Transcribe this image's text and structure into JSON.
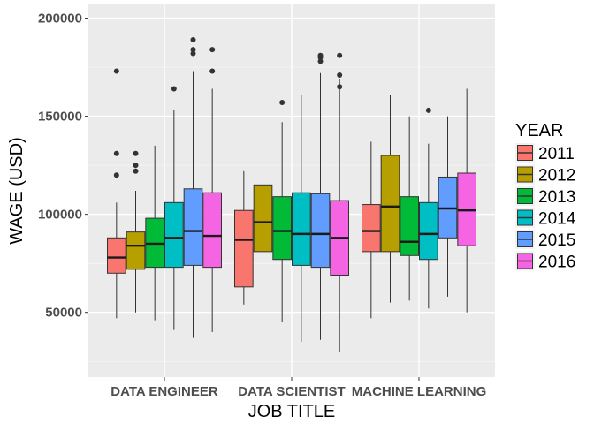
{
  "chart_data": {
    "type": "boxplot",
    "title": "",
    "xlabel": "JOB TITLE",
    "ylabel": "WAGE (USD)",
    "ylim": [
      17000,
      207000
    ],
    "yticks": [
      50000,
      100000,
      150000,
      200000
    ],
    "y_tick_labels": [
      "50000",
      "100000",
      "150000",
      "200000"
    ],
    "grid": true,
    "legend": {
      "title": "YEAR",
      "placement": "right"
    },
    "categories": [
      "DATA ENGINEER",
      "DATA SCIENTIST",
      "MACHINE LEARNING"
    ],
    "series": [
      {
        "name": "2011",
        "color": "#F8766D",
        "boxes": [
          {
            "lower": 47000,
            "q1": 70000,
            "median": 78000,
            "q3": 88000,
            "upper": 106000,
            "outliers": [
              120000,
              131000,
              173000
            ]
          },
          {
            "lower": 54000,
            "q1": 63000,
            "median": 87000,
            "q3": 102000,
            "upper": 122000,
            "outliers": []
          },
          {
            "lower": 47000,
            "q1": 81000,
            "median": 91500,
            "q3": 105000,
            "upper": 137000,
            "outliers": []
          }
        ]
      },
      {
        "name": "2012",
        "color": "#B79F00",
        "boxes": [
          {
            "lower": 50000,
            "q1": 72000,
            "median": 84000,
            "q3": 91000,
            "upper": 112000,
            "outliers": [
              122000,
              125000,
              131000
            ]
          },
          {
            "lower": 46000,
            "q1": 81000,
            "median": 96000,
            "q3": 115000,
            "upper": 157000,
            "outliers": []
          },
          {
            "lower": 55000,
            "q1": 81000,
            "median": 104000,
            "q3": 130000,
            "upper": 161000,
            "outliers": []
          }
        ]
      },
      {
        "name": "2013",
        "color": "#00BA38",
        "boxes": [
          {
            "lower": 46000,
            "q1": 73000,
            "median": 85000,
            "q3": 98000,
            "upper": 135000,
            "outliers": []
          },
          {
            "lower": 45000,
            "q1": 77000,
            "median": 91500,
            "q3": 109000,
            "upper": 147000,
            "outliers": [
              157000
            ]
          },
          {
            "lower": 56000,
            "q1": 79000,
            "median": 86000,
            "q3": 109000,
            "upper": 150000,
            "outliers": []
          }
        ]
      },
      {
        "name": "2014",
        "color": "#00BFC4",
        "boxes": [
          {
            "lower": 41000,
            "q1": 73000,
            "median": 88000,
            "q3": 106000,
            "upper": 153000,
            "outliers": [
              164000
            ]
          },
          {
            "lower": 35000,
            "q1": 74000,
            "median": 90000,
            "q3": 111000,
            "upper": 161000,
            "outliers": []
          },
          {
            "lower": 52000,
            "q1": 77000,
            "median": 90000,
            "q3": 106000,
            "upper": 136000,
            "outliers": [
              153000
            ]
          }
        ]
      },
      {
        "name": "2015",
        "color": "#619CFF",
        "boxes": [
          {
            "lower": 37000,
            "q1": 74000,
            "median": 91500,
            "q3": 113000,
            "upper": 173000,
            "outliers": [
              182000,
              184000,
              189000
            ]
          },
          {
            "lower": 36000,
            "q1": 73000,
            "median": 90000,
            "q3": 110500,
            "upper": 172000,
            "outliers": [
              178000,
              180000,
              181000
            ]
          },
          {
            "lower": 58000,
            "q1": 88000,
            "median": 103000,
            "q3": 119000,
            "upper": 150000,
            "outliers": []
          }
        ]
      },
      {
        "name": "2016",
        "color": "#F564E3",
        "boxes": [
          {
            "lower": 40000,
            "q1": 73000,
            "median": 89000,
            "q3": 111000,
            "upper": 164000,
            "outliers": [
              173000,
              184000
            ]
          },
          {
            "lower": 30000,
            "q1": 69000,
            "median": 88000,
            "q3": 107000,
            "upper": 169000,
            "outliers": [
              165000,
              171000,
              181000
            ]
          },
          {
            "lower": 50000,
            "q1": 84000,
            "median": 102000,
            "q3": 121000,
            "upper": 164000,
            "outliers": []
          }
        ]
      }
    ]
  }
}
